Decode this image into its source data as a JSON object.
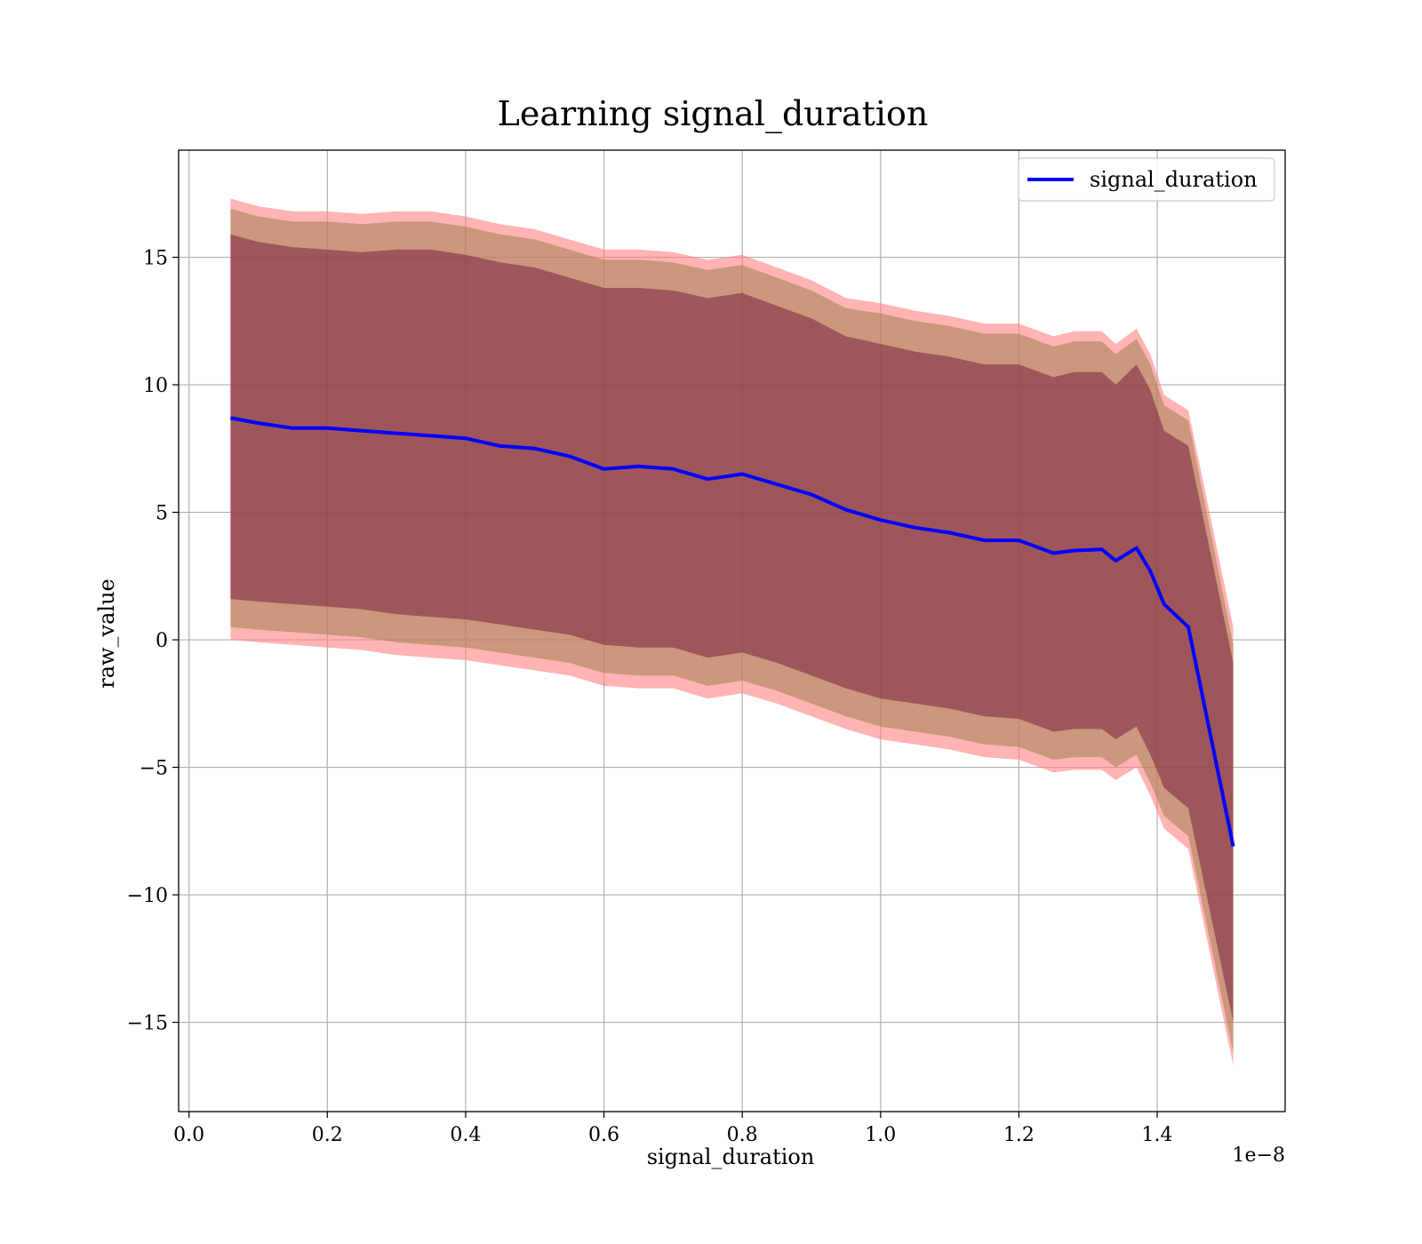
{
  "chart_data": {
    "type": "area",
    "title": "Learning signal_duration",
    "xlabel": "signal_duration",
    "ylabel": "raw_value",
    "x_offset_text": "1e−8",
    "xlim": [
      -0.015,
      1.585
    ],
    "ylim": [
      -18.5,
      19.2
    ],
    "x_ticks": [
      0.0,
      0.2,
      0.4,
      0.6,
      0.8,
      1.0,
      1.2,
      1.4
    ],
    "x_tick_labels": [
      "0.0",
      "0.2",
      "0.4",
      "0.6",
      "0.8",
      "1.0",
      "1.2",
      "1.4"
    ],
    "y_ticks": [
      15,
      10,
      5,
      0,
      -5,
      -10,
      -15
    ],
    "y_tick_labels": [
      "15",
      "10",
      "5",
      "0",
      "−5",
      "−10",
      "−15"
    ],
    "grid": true,
    "legend_position": "top-right",
    "colors": {
      "line": "#0000ff",
      "outer_band": "#ff8080",
      "middle_band": "#a08050",
      "inner_band": "#7a2040"
    },
    "series": [
      {
        "name": "signal_duration",
        "x": [
          0.06,
          0.1,
          0.15,
          0.2,
          0.25,
          0.3,
          0.35,
          0.4,
          0.45,
          0.5,
          0.55,
          0.6,
          0.65,
          0.7,
          0.75,
          0.8,
          0.85,
          0.9,
          0.95,
          1.0,
          1.05,
          1.1,
          1.15,
          1.2,
          1.25,
          1.28,
          1.32,
          1.34,
          1.37,
          1.39,
          1.41,
          1.445,
          1.51
        ],
        "y": [
          8.7,
          8.5,
          8.3,
          8.3,
          8.2,
          8.1,
          8.0,
          7.9,
          7.6,
          7.5,
          7.2,
          6.7,
          6.8,
          6.7,
          6.3,
          6.5,
          6.1,
          5.7,
          5.1,
          4.7,
          4.4,
          4.2,
          3.9,
          3.9,
          3.4,
          3.5,
          3.55,
          3.1,
          3.6,
          2.7,
          1.4,
          0.5,
          -8.1
        ]
      }
    ],
    "bands": [
      {
        "kind": "outer",
        "upper": [
          17.3,
          17.0,
          16.8,
          16.8,
          16.7,
          16.8,
          16.8,
          16.6,
          16.3,
          16.1,
          15.7,
          15.3,
          15.3,
          15.2,
          14.9,
          15.1,
          14.6,
          14.1,
          13.4,
          13.2,
          12.9,
          12.7,
          12.4,
          12.4,
          11.9,
          12.1,
          12.1,
          11.6,
          12.2,
          11.2,
          9.6,
          9.0,
          0.5
        ],
        "lower": [
          0.0,
          -0.1,
          -0.2,
          -0.3,
          -0.4,
          -0.6,
          -0.7,
          -0.8,
          -1.0,
          -1.2,
          -1.4,
          -1.8,
          -1.9,
          -1.9,
          -2.3,
          -2.1,
          -2.5,
          -3.0,
          -3.5,
          -3.9,
          -4.1,
          -4.3,
          -4.6,
          -4.7,
          -5.2,
          -5.1,
          -5.1,
          -5.5,
          -5.0,
          -6.1,
          -7.4,
          -8.2,
          -16.7
        ]
      },
      {
        "kind": "middle",
        "upper": [
          16.9,
          16.6,
          16.4,
          16.4,
          16.3,
          16.4,
          16.4,
          16.2,
          15.9,
          15.7,
          15.3,
          14.9,
          14.9,
          14.8,
          14.5,
          14.7,
          14.2,
          13.7,
          13.0,
          12.8,
          12.5,
          12.3,
          12.0,
          12.0,
          11.5,
          11.7,
          11.7,
          11.2,
          11.8,
          10.8,
          9.2,
          8.6,
          -0.2
        ],
        "lower": [
          0.5,
          0.4,
          0.3,
          0.2,
          0.1,
          -0.1,
          -0.2,
          -0.3,
          -0.5,
          -0.7,
          -0.9,
          -1.3,
          -1.4,
          -1.4,
          -1.8,
          -1.6,
          -2.0,
          -2.5,
          -3.0,
          -3.4,
          -3.6,
          -3.8,
          -4.1,
          -4.2,
          -4.7,
          -4.6,
          -4.6,
          -5.0,
          -4.5,
          -5.6,
          -6.9,
          -7.7,
          -16.2
        ]
      },
      {
        "kind": "inner",
        "upper": [
          15.9,
          15.6,
          15.4,
          15.3,
          15.2,
          15.3,
          15.3,
          15.1,
          14.8,
          14.6,
          14.2,
          13.8,
          13.8,
          13.7,
          13.4,
          13.6,
          13.1,
          12.6,
          11.9,
          11.6,
          11.3,
          11.1,
          10.8,
          10.8,
          10.3,
          10.5,
          10.5,
          10.0,
          10.8,
          9.8,
          8.2,
          7.6,
          -0.9
        ],
        "lower": [
          1.6,
          1.5,
          1.4,
          1.3,
          1.2,
          1.0,
          0.9,
          0.8,
          0.6,
          0.4,
          0.2,
          -0.2,
          -0.3,
          -0.3,
          -0.7,
          -0.5,
          -0.9,
          -1.4,
          -1.9,
          -2.3,
          -2.5,
          -2.7,
          -3.0,
          -3.1,
          -3.6,
          -3.5,
          -3.5,
          -3.9,
          -3.4,
          -4.5,
          -5.8,
          -6.6,
          -15.0
        ]
      }
    ]
  }
}
